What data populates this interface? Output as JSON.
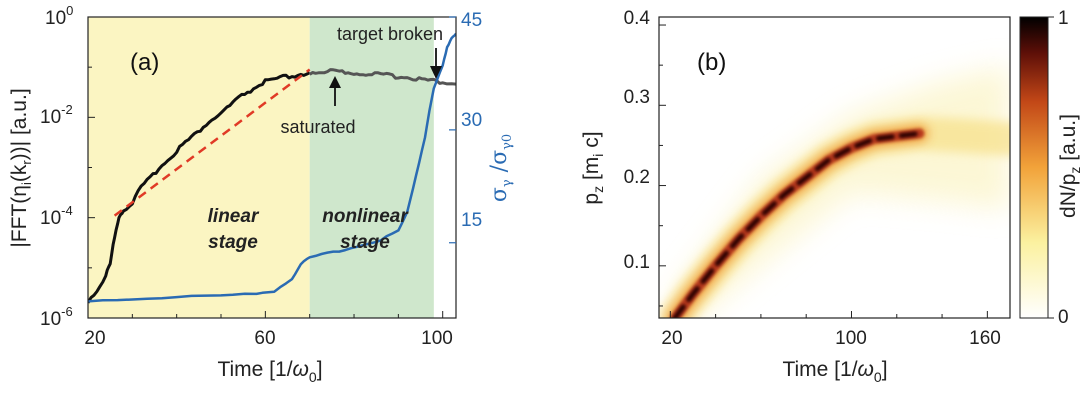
{
  "chart_data": [
    {
      "type": "line",
      "panel_label": "(a)",
      "xlabel": "Time [1/ω0]",
      "ylabel_left": "|FFT(η(k))|  [a.u.]",
      "ylabel_right": "σγ /σγ0",
      "xlim": [
        20,
        103
      ],
      "ylim_left": [
        1e-06,
        1
      ],
      "ylim_right": [
        5,
        45
      ],
      "y_scale_left": "log",
      "xticks": [
        "20",
        "60",
        "100"
      ],
      "yticks_left": [
        {
          "base": "10",
          "exp": "0"
        },
        {
          "base": "10",
          "exp": "-2"
        },
        {
          "base": "10",
          "exp": "-4"
        },
        {
          "base": "10",
          "exp": "-6"
        }
      ],
      "yticks_right": [
        "45",
        "30",
        "15"
      ],
      "regions": [
        {
          "label_line1": "linear",
          "label_line2": "stage",
          "x_range": [
            20,
            70
          ],
          "color": "#fbf5c2"
        },
        {
          "label_line1": "nonlinear",
          "label_line2": "stage",
          "x_range": [
            70,
            98
          ],
          "color": "#cfe7cc"
        }
      ],
      "annotations": [
        {
          "text": "saturated",
          "x": 74,
          "y": 0.07
        },
        {
          "text": "target broken",
          "x": 98,
          "y": 0.05
        }
      ],
      "series": [
        {
          "color": "#111111",
          "axis": "left",
          "x": [
            20,
            22,
            24,
            25,
            26,
            27,
            28,
            30,
            32,
            34,
            36,
            38,
            40,
            42,
            44,
            46,
            48,
            50,
            52,
            54,
            56,
            58,
            60,
            62,
            64,
            66,
            68,
            70
          ],
          "y": [
            2.2e-06,
            3.5e-06,
            7e-06,
            1.2e-05,
            4e-05,
            0.00011,
            0.00014,
            0.0002,
            0.0004,
            0.0006,
            0.001,
            0.0014,
            0.0022,
            0.0032,
            0.0044,
            0.0065,
            0.009,
            0.012,
            0.017,
            0.024,
            0.032,
            0.04,
            0.052,
            0.055,
            0.062,
            0.066,
            0.072,
            0.078
          ]
        },
        {
          "color": "#555555",
          "axis": "left",
          "x": [
            70,
            72,
            74,
            76,
            78,
            80,
            82,
            84,
            86,
            88,
            90,
            92,
            94,
            96,
            98,
            100,
            103
          ],
          "y": [
            0.078,
            0.08,
            0.083,
            0.086,
            0.075,
            0.078,
            0.073,
            0.075,
            0.07,
            0.068,
            0.065,
            0.063,
            0.06,
            0.056,
            0.053,
            0.05,
            0.046
          ]
        },
        {
          "name": "fit",
          "color": "#e03a26",
          "axis": "left",
          "x": [
            26,
            70
          ],
          "y": [
            0.00011,
            0.09
          ]
        },
        {
          "color": "#2a6bb3",
          "axis": "right",
          "x": [
            20,
            30,
            40,
            50,
            58,
            62,
            66,
            68,
            70,
            74,
            78,
            82,
            86,
            90,
            92,
            94,
            96,
            97,
            98,
            100,
            101,
            102,
            103
          ],
          "y": [
            7.3,
            7.5,
            7.8,
            8.0,
            8.2,
            8.6,
            10.2,
            12.2,
            13.0,
            13.6,
            14.1,
            14.7,
            15.4,
            16.6,
            19.0,
            24.0,
            29.0,
            32.5,
            35.5,
            38.5,
            41.0,
            42.2,
            42.8
          ]
        }
      ]
    },
    {
      "type": "heatmap",
      "panel_label": "(b)",
      "xlabel": "Time [1/ω0]",
      "ylabel": "pz [mi c]",
      "colorbar_label": "dN/pz [a.u.]",
      "xlim": [
        15,
        170
      ],
      "ylim": [
        0.035,
        0.41
      ],
      "xticks": [
        "20",
        "100",
        "160"
      ],
      "yticks": [
        "0.1",
        "0.2",
        "0.3",
        "0.4"
      ],
      "colorbar_ticks": [
        "0",
        "1"
      ],
      "colorbar_range": [
        0,
        1
      ],
      "ridge": {
        "x": [
          22,
          30,
          40,
          50,
          60,
          70,
          80,
          90,
          100,
          110,
          130
        ],
        "y": [
          0.035,
          0.065,
          0.1,
          0.133,
          0.162,
          0.188,
          0.21,
          0.232,
          0.247,
          0.258,
          0.265
        ]
      }
    }
  ]
}
